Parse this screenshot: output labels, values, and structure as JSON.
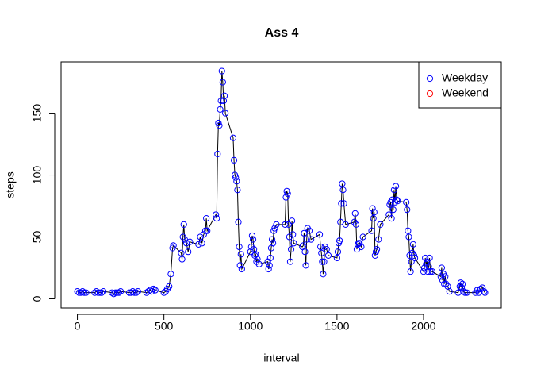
{
  "chart_data": {
    "type": "line",
    "title": "Ass 4",
    "x_label": "interval",
    "y_label": "steps",
    "x": [
      0,
      10,
      20,
      30,
      40,
      50,
      100,
      110,
      120,
      130,
      140,
      150,
      200,
      210,
      220,
      230,
      240,
      250,
      300,
      310,
      320,
      330,
      340,
      350,
      400,
      410,
      420,
      430,
      440,
      450,
      500,
      510,
      520,
      530,
      540,
      550,
      555,
      600,
      605,
      610,
      615,
      620,
      630,
      640,
      650,
      700,
      710,
      720,
      730,
      740,
      745,
      750,
      800,
      805,
      810,
      815,
      820,
      825,
      830,
      835,
      840,
      845,
      850,
      855,
      900,
      905,
      910,
      915,
      920,
      925,
      930,
      935,
      940,
      945,
      950,
      1000,
      1005,
      1010,
      1015,
      1020,
      1025,
      1030,
      1035,
      1040,
      1050,
      1100,
      1105,
      1110,
      1115,
      1120,
      1125,
      1130,
      1135,
      1140,
      1150,
      1200,
      1205,
      1210,
      1215,
      1220,
      1225,
      1230,
      1235,
      1240,
      1245,
      1250,
      1300,
      1305,
      1310,
      1315,
      1320,
      1325,
      1330,
      1340,
      1350,
      1400,
      1405,
      1410,
      1415,
      1420,
      1425,
      1430,
      1440,
      1450,
      1500,
      1505,
      1510,
      1515,
      1520,
      1525,
      1530,
      1535,
      1540,
      1550,
      1600,
      1605,
      1610,
      1615,
      1620,
      1625,
      1630,
      1640,
      1650,
      1700,
      1705,
      1710,
      1715,
      1720,
      1725,
      1730,
      1740,
      1750,
      1800,
      1805,
      1810,
      1815,
      1820,
      1825,
      1830,
      1835,
      1840,
      1845,
      1850,
      1900,
      1905,
      1910,
      1915,
      1920,
      1925,
      1930,
      1935,
      1940,
      1945,
      1950,
      2000,
      2005,
      2010,
      2015,
      2020,
      2025,
      2030,
      2035,
      2040,
      2050,
      2100,
      2105,
      2110,
      2115,
      2120,
      2125,
      2130,
      2140,
      2150,
      2200,
      2210,
      2215,
      2220,
      2225,
      2230,
      2240,
      2250,
      2300,
      2310,
      2320,
      2330,
      2340,
      2350,
      2355
    ],
    "series": [
      {
        "name": "Weekday",
        "color": "#0000ff",
        "line_color": "#000000",
        "values": [
          6,
          5,
          5,
          6,
          5,
          5,
          5,
          6,
          5,
          5,
          5,
          6,
          5,
          4,
          5,
          5,
          5,
          6,
          5,
          5,
          6,
          5,
          5,
          6,
          5,
          6,
          7,
          6,
          8,
          7,
          5,
          6,
          8,
          10,
          20,
          41,
          43,
          37,
          32,
          50,
          60,
          48,
          45,
          38,
          46,
          44,
          50,
          45,
          52,
          55,
          65,
          55,
          68,
          65,
          117,
          142,
          140,
          153,
          160,
          184,
          175,
          160,
          164,
          150,
          130,
          112,
          100,
          98,
          95,
          88,
          62,
          42,
          27,
          36,
          24,
          38,
          42,
          51,
          48,
          40,
          35,
          36,
          30,
          32,
          28,
          30,
          24,
          27,
          33,
          41,
          48,
          45,
          55,
          57,
          60,
          60,
          82,
          87,
          85,
          60,
          50,
          30,
          40,
          63,
          52,
          45,
          42,
          43,
          53,
          38,
          27,
          48,
          57,
          55,
          48,
          52,
          42,
          37,
          30,
          20,
          30,
          42,
          40,
          35,
          33,
          38,
          45,
          47,
          62,
          77,
          93,
          88,
          77,
          60,
          62,
          69,
          60,
          40,
          44,
          45,
          45,
          42,
          50,
          55,
          73,
          65,
          70,
          35,
          38,
          40,
          48,
          60,
          68,
          76,
          78,
          65,
          80,
          72,
          88,
          78,
          91,
          80,
          79,
          78,
          72,
          55,
          50,
          35,
          22,
          30,
          37,
          44,
          35,
          33,
          22,
          25,
          33,
          28,
          30,
          22,
          26,
          33,
          22,
          22,
          18,
          25,
          15,
          20,
          12,
          18,
          12,
          10,
          6,
          5,
          10,
          13,
          9,
          12,
          6,
          5,
          5,
          5,
          7,
          5,
          8,
          9,
          6,
          5
        ]
      }
    ],
    "legend": [
      {
        "name": "Weekday",
        "color": "#0000ff"
      },
      {
        "name": "Weekend",
        "color": "#ff0000"
      }
    ],
    "legend_position": "top-right",
    "xlim": [
      -94.2,
      2449.2
    ],
    "xticks": [
      0,
      500,
      1000,
      1500,
      2000
    ],
    "ylim": [
      -7.4,
      191.4
    ],
    "yticks": [
      0,
      50,
      100,
      150
    ]
  }
}
